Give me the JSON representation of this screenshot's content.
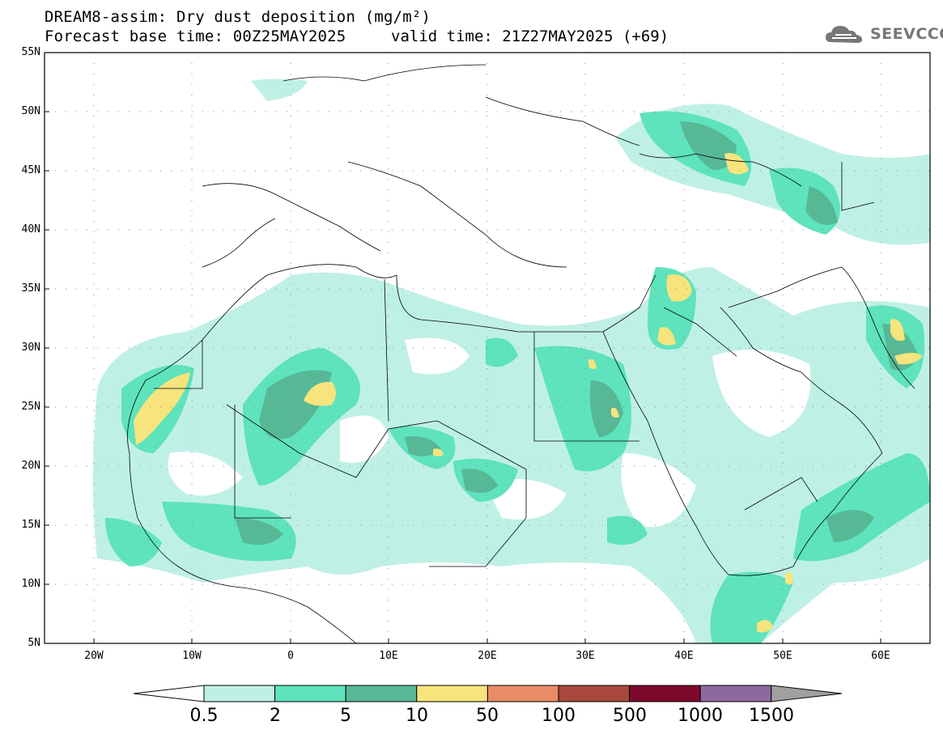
{
  "header": {
    "title": "DREAM8-assim: Dry dust deposition (mg/m²)",
    "base_time": "Forecast base time: 00Z25MAY2025",
    "valid_time": "valid time: 21Z27MAY2025 (+69)"
  },
  "logo": {
    "text": "SEEVCCC",
    "icon": "cloud-icon"
  },
  "map": {
    "lat_labels": [
      "55N",
      "50N",
      "45N",
      "40N",
      "35N",
      "30N",
      "25N",
      "20N",
      "15N",
      "10N",
      "5N"
    ],
    "lon_labels": [
      "20W",
      "10W",
      "0",
      "10E",
      "20E",
      "30E",
      "40E",
      "50E",
      "60E"
    ],
    "lon_range": [
      -25,
      65
    ],
    "lat_range": [
      5,
      55
    ]
  },
  "legend": {
    "labels": [
      "0.5",
      "2",
      "5",
      "10",
      "50",
      "100",
      "500",
      "1000",
      "1500"
    ],
    "colors": [
      "#ffffff",
      "#bff0e6",
      "#5ee3bc",
      "#57b896",
      "#f7e47d",
      "#e98c65",
      "#a8483c",
      "#7d0a2c",
      "#8e69a0",
      "#a0a0a0"
    ]
  }
}
